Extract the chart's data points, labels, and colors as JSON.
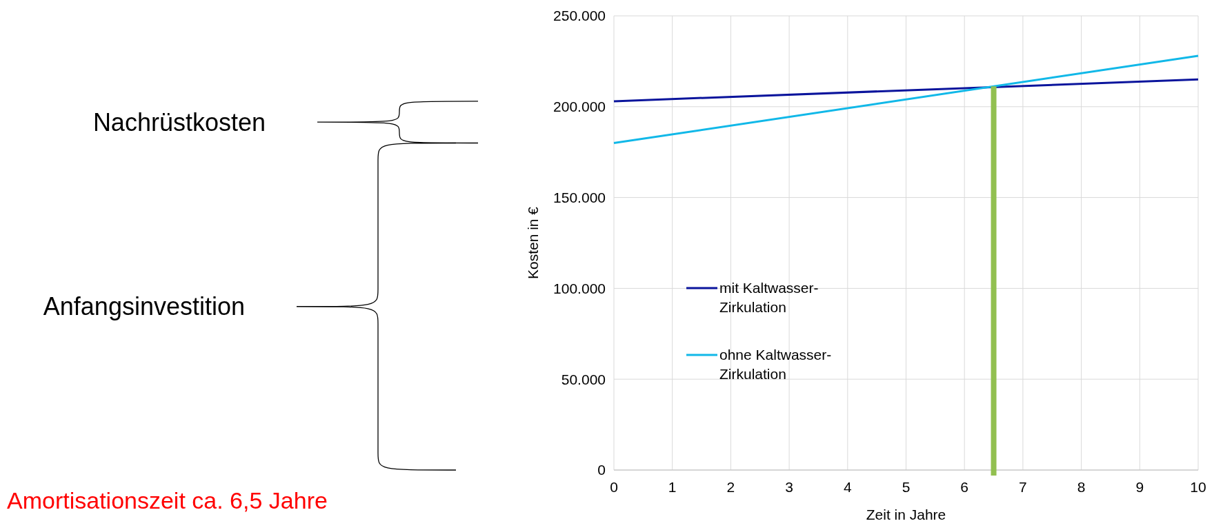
{
  "chart_data": {
    "type": "line",
    "xlabel": "Zeit in Jahre",
    "ylabel": "Kosten in €",
    "x": [
      0,
      10
    ],
    "series": [
      {
        "name": "mit Kaltwasser-Zirkulation",
        "color": "#0a149c",
        "values": [
          203000,
          215000
        ]
      },
      {
        "name": "ohne Kaltwasser-Zirkulation",
        "color": "#11b8e8",
        "values": [
          180000,
          228000
        ]
      }
    ],
    "xlim": [
      0,
      10
    ],
    "xticks": [
      0,
      1,
      2,
      3,
      4,
      5,
      6,
      7,
      8,
      9,
      10
    ],
    "ylim": [
      0,
      250000
    ],
    "yticks": [
      {
        "value": 0,
        "label": "0"
      },
      {
        "value": 50000,
        "label": "50.000"
      },
      {
        "value": 100000,
        "label": "100.000"
      },
      {
        "value": 150000,
        "label": "150.000"
      },
      {
        "value": 200000,
        "label": "200.000"
      },
      {
        "value": 250000,
        "label": "250.000"
      }
    ],
    "grid": true,
    "legend": "left",
    "marker": "none",
    "line_style": "solid",
    "ref_lines": [
      {
        "axis": "x",
        "value": 6.5,
        "color": "#92c050"
      }
    ],
    "annotations": [
      "Nachrüstkosten",
      "Anfangsinvestition",
      "Amortisationszeit ca. 6,5 Jahre"
    ]
  }
}
